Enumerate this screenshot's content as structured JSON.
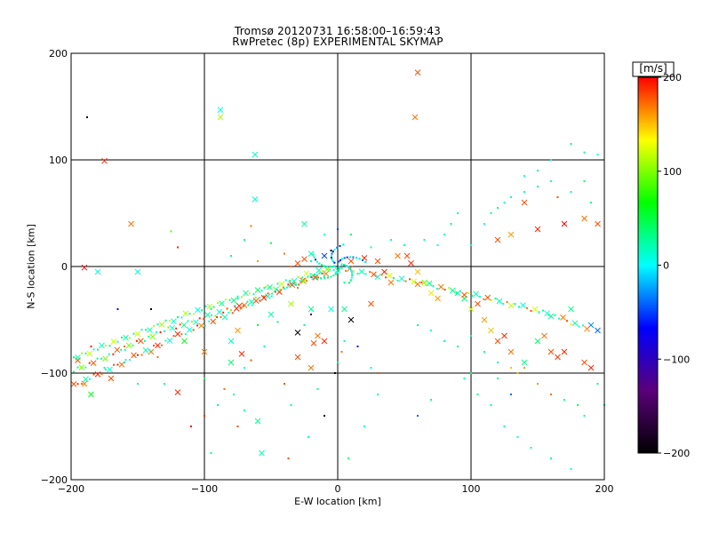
{
  "chart_data": {
    "type": "scatter",
    "title": "Tromsø 20120731 16:58:00–16:59:43",
    "subtitle": "RwPretec (8p) EXPERIMENTAL SKYMAP",
    "xlabel": "E-W location [km]",
    "ylabel": "N-S location [km]",
    "xlim": [
      -200,
      200
    ],
    "ylim": [
      -200,
      200
    ],
    "xticks": [
      -200,
      -100,
      0,
      100,
      200
    ],
    "yticks": [
      -200,
      -100,
      0,
      100,
      200
    ],
    "grid": true,
    "colorbar": {
      "unit": "[m/s]",
      "range": [
        -200,
        200
      ],
      "ticks": [
        200,
        100,
        0,
        -100,
        -200
      ],
      "colormap": [
        "#000000",
        "#5a007a",
        "#0000ff",
        "#00ffff",
        "#00ff00",
        "#ffff00",
        "#ff0000"
      ]
    },
    "series": [
      {
        "marker": "x",
        "points": [
          [
            60,
            182,
            180
          ],
          [
            58,
            140,
            170
          ],
          [
            -88,
            147,
            10
          ],
          [
            -88,
            140,
            110
          ],
          [
            -175,
            99,
            190
          ],
          [
            -62,
            105,
            15
          ],
          [
            -62,
            63,
            10
          ],
          [
            -155,
            40,
            170
          ],
          [
            -25,
            40,
            20
          ],
          [
            -150,
            -5,
            10
          ],
          [
            -190,
            -1,
            200
          ],
          [
            -180,
            -5,
            10
          ],
          [
            -30,
            3,
            180
          ],
          [
            -25,
            7,
            180
          ],
          [
            -20,
            12,
            20
          ],
          [
            -10,
            10,
            -50
          ],
          [
            10,
            5,
            180
          ],
          [
            20,
            8,
            190
          ],
          [
            30,
            5,
            180
          ],
          [
            45,
            10,
            170
          ],
          [
            52,
            10,
            180
          ],
          [
            55,
            3,
            190
          ],
          [
            60,
            -5,
            150
          ],
          [
            65,
            -15,
            100
          ],
          [
            70,
            -25,
            140
          ],
          [
            75,
            -30,
            160
          ],
          [
            90,
            -25,
            30
          ],
          [
            95,
            -30,
            40
          ],
          [
            100,
            -40,
            120
          ],
          [
            105,
            -35,
            180
          ],
          [
            110,
            -50,
            160
          ],
          [
            115,
            -60,
            150
          ],
          [
            120,
            -70,
            180
          ],
          [
            125,
            -65,
            190
          ],
          [
            130,
            -80,
            170
          ],
          [
            140,
            -90,
            30
          ],
          [
            150,
            -70,
            40
          ],
          [
            155,
            -65,
            170
          ],
          [
            160,
            -80,
            180
          ],
          [
            165,
            -85,
            185
          ],
          [
            170,
            -80,
            190
          ],
          [
            175,
            -40,
            30
          ],
          [
            185,
            -90,
            180
          ],
          [
            190,
            -55,
            -30
          ],
          [
            195,
            -60,
            -40
          ],
          [
            190,
            -95,
            190
          ],
          [
            140,
            60,
            180
          ],
          [
            150,
            35,
            190
          ],
          [
            170,
            40,
            200
          ],
          [
            185,
            45,
            170
          ],
          [
            195,
            40,
            180
          ],
          [
            120,
            25,
            180
          ],
          [
            130,
            30,
            160
          ],
          [
            35,
            -5,
            190
          ],
          [
            40,
            -15,
            170
          ],
          [
            -30,
            -62,
            -200
          ],
          [
            -18,
            -72,
            180
          ],
          [
            -30,
            -85,
            180
          ],
          [
            -20,
            -95,
            170
          ],
          [
            -10,
            -70,
            190
          ],
          [
            -15,
            -65,
            170
          ],
          [
            -75,
            -60,
            160
          ],
          [
            -80,
            -70,
            20
          ],
          [
            -120,
            -118,
            190
          ],
          [
            -115,
            -70,
            60
          ],
          [
            -140,
            -80,
            170
          ],
          [
            -170,
            -105,
            180
          ],
          [
            -190,
            -110,
            170
          ],
          [
            -195,
            -88,
            180
          ],
          [
            -185,
            -120,
            60
          ],
          [
            -60,
            -145,
            30
          ],
          [
            -57,
            -175,
            20
          ],
          [
            -80,
            -90,
            40
          ],
          [
            -72,
            -82,
            190
          ],
          [
            -100,
            -80,
            170
          ],
          [
            10,
            -50,
            -200
          ],
          [
            5,
            -40,
            30
          ],
          [
            -5,
            -40,
            10
          ],
          [
            -20,
            -40,
            30
          ],
          [
            -35,
            -35,
            110
          ],
          [
            -50,
            -45,
            20
          ],
          [
            25,
            -35,
            180
          ]
        ]
      },
      {
        "marker": "dot",
        "points": [
          [
            -188,
            140,
            -200
          ],
          [
            -120,
            18,
            190
          ],
          [
            -125,
            33,
            90
          ],
          [
            -65,
            38,
            170
          ],
          [
            -70,
            25,
            30
          ],
          [
            -40,
            12,
            170
          ],
          [
            -60,
            5,
            160
          ],
          [
            -80,
            10,
            30
          ],
          [
            -50,
            22,
            50
          ],
          [
            -45,
            -52,
            30
          ],
          [
            -60,
            -55,
            60
          ],
          [
            -55,
            -75,
            20
          ],
          [
            -65,
            -88,
            180
          ],
          [
            -70,
            -95,
            10
          ],
          [
            -78,
            -120,
            20
          ],
          [
            -90,
            -130,
            20
          ],
          [
            -100,
            -140,
            190
          ],
          [
            -110,
            -150,
            200
          ],
          [
            -150,
            -110,
            20
          ],
          [
            -160,
            -90,
            10
          ],
          [
            -165,
            -40,
            -100
          ],
          [
            -140,
            -40,
            -200
          ],
          [
            -135,
            -85,
            170
          ],
          [
            -130,
            -110,
            30
          ],
          [
            -95,
            -175,
            20
          ],
          [
            -75,
            -150,
            180
          ],
          [
            -37,
            -180,
            180
          ],
          [
            -22,
            -160,
            20
          ],
          [
            -10,
            -140,
            -200
          ],
          [
            0,
            -90,
            30
          ],
          [
            3,
            -80,
            170
          ],
          [
            5,
            -70,
            20
          ],
          [
            15,
            -75,
            -100
          ],
          [
            25,
            -95,
            10
          ],
          [
            30,
            -100,
            180
          ],
          [
            -2,
            -100,
            -200
          ],
          [
            -35,
            -130,
            20
          ],
          [
            8,
            -180,
            30
          ],
          [
            20,
            -150,
            10
          ],
          [
            30,
            -120,
            20
          ],
          [
            60,
            -140,
            -40
          ],
          [
            70,
            -125,
            30
          ],
          [
            95,
            -105,
            20
          ],
          [
            100,
            -100,
            40
          ],
          [
            105,
            -120,
            30
          ],
          [
            115,
            -130,
            30
          ],
          [
            125,
            -150,
            20
          ],
          [
            135,
            -160,
            10
          ],
          [
            145,
            -170,
            20
          ],
          [
            160,
            -180,
            30
          ],
          [
            175,
            -190,
            10
          ],
          [
            185,
            -140,
            20
          ],
          [
            200,
            -130,
            30
          ],
          [
            130,
            -120,
            -40
          ],
          [
            120,
            -105,
            30
          ],
          [
            135,
            -100,
            150
          ],
          [
            150,
            -110,
            160
          ],
          [
            160,
            -120,
            170
          ],
          [
            170,
            -125,
            30
          ],
          [
            180,
            -130,
            40
          ],
          [
            195,
            -110,
            30
          ],
          [
            60,
            -55,
            30
          ],
          [
            70,
            -60,
            10
          ],
          [
            80,
            -70,
            20
          ],
          [
            90,
            -75,
            30
          ],
          [
            100,
            -65,
            20
          ],
          [
            110,
            -80,
            30
          ],
          [
            120,
            -90,
            20
          ],
          [
            130,
            -95,
            150
          ],
          [
            140,
            -95,
            160
          ],
          [
            140,
            85,
            10
          ],
          [
            150,
            90,
            30
          ],
          [
            160,
            100,
            10
          ],
          [
            175,
            115,
            30
          ],
          [
            185,
            107,
            20
          ],
          [
            195,
            105,
            10
          ],
          [
            140,
            70,
            20
          ],
          [
            150,
            75,
            30
          ],
          [
            160,
            80,
            20
          ],
          [
            165,
            65,
            180
          ],
          [
            175,
            70,
            10
          ],
          [
            185,
            80,
            40
          ],
          [
            190,
            60,
            30
          ],
          [
            110,
            40,
            10
          ],
          [
            115,
            50,
            20
          ],
          [
            120,
            55,
            30
          ],
          [
            125,
            60,
            10
          ],
          [
            130,
            65,
            20
          ],
          [
            100,
            20,
            10
          ],
          [
            80,
            30,
            20
          ],
          [
            85,
            40,
            30
          ],
          [
            90,
            50,
            20
          ],
          [
            75,
            20,
            10
          ],
          [
            65,
            25,
            20
          ],
          [
            50,
            20,
            30
          ],
          [
            40,
            25,
            10
          ],
          [
            25,
            18,
            20
          ],
          [
            10,
            30,
            30
          ],
          [
            0,
            35,
            -50
          ],
          [
            -10,
            30,
            10
          ],
          [
            -5,
            15,
            -200
          ],
          [
            -20,
            5,
            30
          ],
          [
            -35,
            0,
            170
          ],
          [
            -10,
            -10,
            20
          ],
          [
            5,
            -15,
            30
          ],
          [
            -30,
            -20,
            170
          ],
          [
            -55,
            -20,
            30
          ],
          [
            -75,
            -30,
            20
          ],
          [
            -95,
            -40,
            10
          ],
          [
            -20,
            -45,
            -150
          ],
          [
            -25,
            -55,
            30
          ],
          [
            -15,
            -115,
            20
          ],
          [
            -40,
            -110,
            180
          ],
          [
            -160,
            -75,
            170
          ],
          [
            -175,
            -95,
            30
          ],
          [
            -185,
            -75,
            190
          ],
          [
            -100,
            -105,
            40
          ],
          [
            -85,
            -115,
            170
          ],
          [
            -70,
            -135,
            20
          ]
        ]
      }
    ]
  }
}
